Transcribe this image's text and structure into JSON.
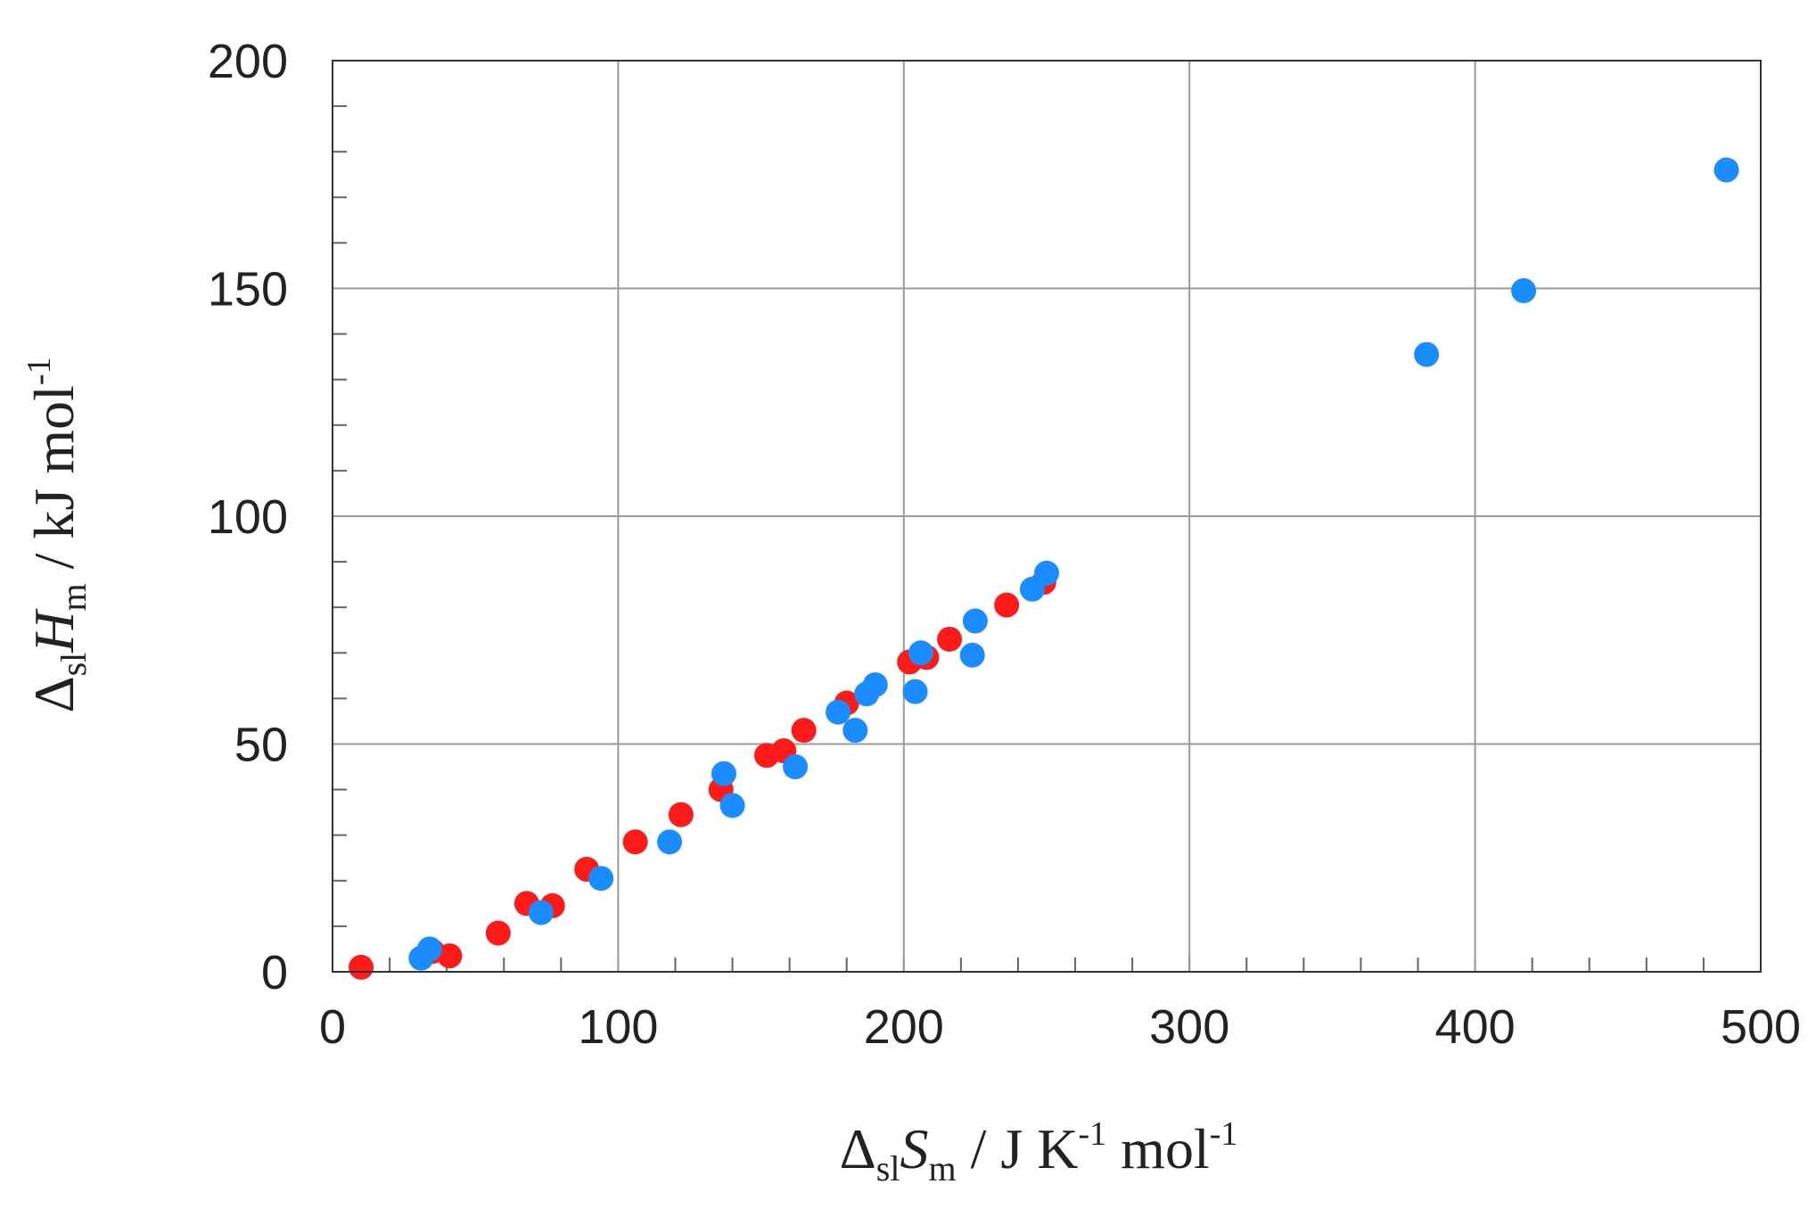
{
  "chart_data": {
    "type": "scatter",
    "xlim": [
      0,
      500
    ],
    "ylim": [
      0,
      200
    ],
    "x_ticks": [
      0,
      100,
      200,
      300,
      400,
      500
    ],
    "y_ticks": [
      0,
      50,
      100,
      150,
      200
    ],
    "x_tick_labels": [
      "0",
      "100",
      "200",
      "300",
      "400",
      "500"
    ],
    "y_tick_labels": [
      "0",
      "50",
      "100",
      "150",
      "200"
    ],
    "grid": true,
    "xlabel": {
      "delta": "Δ",
      "delta_sub": "sl",
      "symbol": "S",
      "symbol_sub": "m",
      "unit_a": " / J K",
      "unit_a_sup": "-1",
      "unit_b": " mol",
      "unit_b_sup": "-1"
    },
    "ylabel": {
      "delta": "Δ",
      "delta_sub": "sl",
      "symbol": "H",
      "symbol_sub": "m",
      "unit_a": " / kJ mol",
      "unit_a_sup": "-1"
    },
    "series": [
      {
        "color": "#ff1a1a",
        "points": [
          [
            10,
            1
          ],
          [
            35,
            4.5
          ],
          [
            41,
            3.5
          ],
          [
            58,
            8.5
          ],
          [
            68,
            15
          ],
          [
            77,
            14.5
          ],
          [
            89,
            22.5
          ],
          [
            106,
            28.5
          ],
          [
            122,
            34.5
          ],
          [
            136,
            40
          ],
          [
            152,
            47.5
          ],
          [
            158,
            48.5
          ],
          [
            165,
            53
          ],
          [
            180,
            59
          ],
          [
            202,
            68
          ],
          [
            208,
            69
          ],
          [
            216,
            73
          ],
          [
            236,
            80.5
          ],
          [
            249,
            85.5
          ]
        ]
      },
      {
        "color": "#1a8cff",
        "points": [
          [
            31,
            3
          ],
          [
            34,
            5
          ],
          [
            73,
            13
          ],
          [
            94,
            20.5
          ],
          [
            118,
            28.5
          ],
          [
            137,
            43.5
          ],
          [
            140,
            36.5
          ],
          [
            162,
            45
          ],
          [
            177,
            57
          ],
          [
            183,
            53
          ],
          [
            187,
            61
          ],
          [
            190,
            63
          ],
          [
            204,
            61.5
          ],
          [
            206,
            70
          ],
          [
            224,
            69.5
          ],
          [
            225,
            77
          ],
          [
            245,
            84
          ],
          [
            250,
            87.5
          ],
          [
            383,
            135.5
          ],
          [
            417,
            149.5
          ],
          [
            488,
            176
          ]
        ]
      }
    ]
  }
}
